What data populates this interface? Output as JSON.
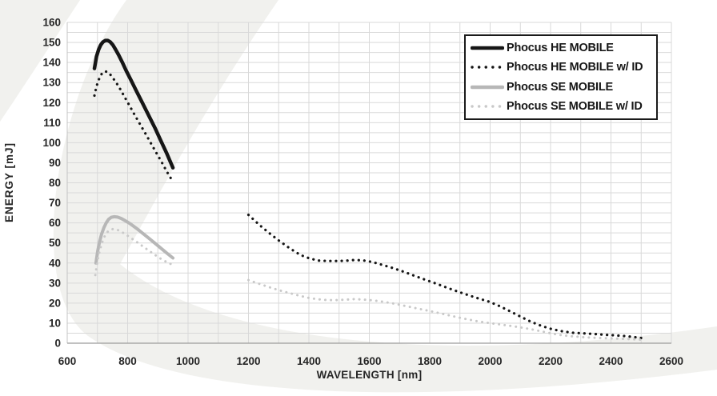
{
  "figure": {
    "background_color": "#ffffff",
    "watermark_color": "#f1f1ee"
  },
  "chart_data": {
    "type": "line",
    "title": "",
    "xlabel": "WAVELENGTH [nm]",
    "ylabel": "ENERGY [mJ]",
    "xlim": [
      600,
      2600
    ],
    "ylim": [
      0,
      160
    ],
    "x_tick_labels": [
      600,
      800,
      1000,
      1200,
      1400,
      1600,
      1800,
      2000,
      2200,
      2400,
      2600
    ],
    "y_tick_labels": [
      0,
      10,
      20,
      30,
      40,
      50,
      60,
      70,
      80,
      90,
      100,
      110,
      120,
      130,
      140,
      150,
      160
    ],
    "x_minor_grid_step_nm": 100,
    "y_minor_grid_step_mj": 5,
    "grid": "minor gridlines on, light gray",
    "legend_position": "top-right",
    "colors": {
      "grid": "#d9d9d9",
      "axis_line": "#9c9c9c",
      "tick_text": "#262626",
      "series_black": "#161616",
      "series_gray_solid": "#b7b7b7",
      "series_gray_dotted": "#c9c9c9"
    },
    "series": [
      {
        "name": "Phocus HE MOBILE",
        "line_style": "solid",
        "color": "#161616",
        "stroke_width": 4.5,
        "segments": [
          [
            [
              690,
              137
            ],
            [
              697,
              143
            ],
            [
              704,
              146.5
            ],
            [
              711,
              148.8
            ],
            [
              718,
              150.2
            ],
            [
              726,
              151
            ],
            [
              734,
              151
            ],
            [
              742,
              150.3
            ],
            [
              751,
              148.8
            ],
            [
              760,
              146.5
            ],
            [
              770,
              143.8
            ],
            [
              782,
              140.2
            ],
            [
              795,
              136
            ],
            [
              810,
              131.5
            ],
            [
              830,
              125.5
            ],
            [
              850,
              119.5
            ],
            [
              870,
              113.5
            ],
            [
              890,
              107.5
            ],
            [
              910,
              101
            ],
            [
              930,
              94.5
            ],
            [
              950,
              87.5
            ]
          ]
        ]
      },
      {
        "name": "Phocus HE MOBILE w/ ID",
        "line_style": "dotted",
        "color": "#161616",
        "stroke_width": 3.2,
        "segments": [
          [
            [
              690,
              123.5
            ],
            [
              696,
              127.5
            ],
            [
              702,
              130.5
            ],
            [
              709,
              133
            ],
            [
              716,
              134.8
            ],
            [
              724,
              135.6
            ],
            [
              732,
              135.4
            ],
            [
              741,
              134.3
            ],
            [
              750,
              132.5
            ],
            [
              762,
              130
            ],
            [
              775,
              126.8
            ],
            [
              790,
              122.8
            ],
            [
              805,
              118.8
            ],
            [
              822,
              114.2
            ],
            [
              840,
              109.5
            ],
            [
              858,
              104.8
            ],
            [
              876,
              100
            ],
            [
              894,
              95.2
            ],
            [
              912,
              90.5
            ],
            [
              930,
              85.5
            ],
            [
              950,
              80.5
            ]
          ],
          [
            [
              1200,
              64
            ],
            [
              1236,
              59
            ],
            [
              1270,
              54.8
            ],
            [
              1304,
              50.8
            ],
            [
              1338,
              47.2
            ],
            [
              1372,
              44
            ],
            [
              1400,
              42.4
            ],
            [
              1430,
              41.2
            ],
            [
              1460,
              41
            ],
            [
              1490,
              41
            ],
            [
              1520,
              41.1
            ],
            [
              1550,
              41.5
            ],
            [
              1580,
              41.3
            ],
            [
              1610,
              40.5
            ],
            [
              1645,
              39
            ],
            [
              1680,
              37.4
            ],
            [
              1715,
              35.6
            ],
            [
              1750,
              33.6
            ],
            [
              1785,
              31.7
            ],
            [
              1820,
              29.8
            ],
            [
              1855,
              27.8
            ],
            [
              1890,
              25.9
            ],
            [
              1925,
              24.1
            ],
            [
              1960,
              22.4
            ],
            [
              1995,
              20.8
            ],
            [
              2030,
              18.6
            ],
            [
              2065,
              16
            ],
            [
              2100,
              13.3
            ],
            [
              2135,
              10.7
            ],
            [
              2170,
              8.6
            ],
            [
              2205,
              7
            ],
            [
              2240,
              5.9
            ],
            [
              2275,
              5.2
            ],
            [
              2310,
              4.9
            ],
            [
              2345,
              4.6
            ],
            [
              2380,
              4.2
            ],
            [
              2415,
              3.9
            ],
            [
              2450,
              3.5
            ],
            [
              2480,
              3
            ],
            [
              2500,
              2.6
            ]
          ]
        ]
      },
      {
        "name": "Phocus SE MOBILE",
        "line_style": "solid",
        "color": "#b7b7b7",
        "stroke_width": 4,
        "segments": [
          [
            [
              695,
              40
            ],
            [
              701,
              46
            ],
            [
              707,
              50.5
            ],
            [
              714,
              54.5
            ],
            [
              721,
              57.5
            ],
            [
              729,
              60
            ],
            [
              737,
              61.8
            ],
            [
              746,
              62.8
            ],
            [
              756,
              63.1
            ],
            [
              767,
              62.9
            ],
            [
              779,
              62.2
            ],
            [
              793,
              61
            ],
            [
              810,
              59.4
            ],
            [
              830,
              57.2
            ],
            [
              850,
              54.8
            ],
            [
              870,
              52.4
            ],
            [
              890,
              49.9
            ],
            [
              910,
              47.4
            ],
            [
              930,
              44.9
            ],
            [
              950,
              42.5
            ]
          ]
        ]
      },
      {
        "name": "Phocus SE MOBILE w/ ID",
        "line_style": "dotted",
        "color": "#c9c9c9",
        "stroke_width": 3,
        "segments": [
          [
            [
              693,
              34
            ],
            [
              699,
              40
            ],
            [
              705,
              44.5
            ],
            [
              712,
              48.5
            ],
            [
              719,
              51.8
            ],
            [
              727,
              54.2
            ],
            [
              735,
              55.8
            ],
            [
              744,
              56.7
            ],
            [
              754,
              57
            ],
            [
              765,
              56.6
            ],
            [
              778,
              55.7
            ],
            [
              793,
              54.3
            ],
            [
              810,
              52.6
            ],
            [
              830,
              50.5
            ],
            [
              850,
              48.3
            ],
            [
              870,
              46.2
            ],
            [
              890,
              44.1
            ],
            [
              910,
              42.1
            ],
            [
              930,
              40.4
            ],
            [
              950,
              39
            ]
          ],
          [
            [
              1200,
              31.5
            ],
            [
              1236,
              29.6
            ],
            [
              1270,
              27.9
            ],
            [
              1304,
              26.3
            ],
            [
              1338,
              24.9
            ],
            [
              1372,
              23.6
            ],
            [
              1400,
              22.6
            ],
            [
              1430,
              21.9
            ],
            [
              1460,
              21.5
            ],
            [
              1490,
              21.5
            ],
            [
              1520,
              21.7
            ],
            [
              1550,
              22
            ],
            [
              1580,
              21.8
            ],
            [
              1610,
              21.4
            ],
            [
              1645,
              20.7
            ],
            [
              1680,
              19.8
            ],
            [
              1715,
              18.7
            ],
            [
              1750,
              17.6
            ],
            [
              1785,
              16.5
            ],
            [
              1820,
              15.4
            ],
            [
              1855,
              14.2
            ],
            [
              1890,
              13
            ],
            [
              1925,
              11.9
            ],
            [
              1960,
              10.9
            ],
            [
              1995,
              10.1
            ],
            [
              2030,
              9.4
            ],
            [
              2065,
              8.7
            ],
            [
              2100,
              7.9
            ],
            [
              2135,
              7
            ],
            [
              2170,
              5.9
            ],
            [
              2205,
              4.8
            ],
            [
              2240,
              3.9
            ],
            [
              2275,
              3.4
            ],
            [
              2310,
              3
            ],
            [
              2345,
              2.7
            ],
            [
              2380,
              2.5
            ],
            [
              2415,
              2.3
            ],
            [
              2450,
              2.1
            ],
            [
              2480,
              1.9
            ],
            [
              2500,
              1.7
            ]
          ]
        ]
      }
    ]
  }
}
